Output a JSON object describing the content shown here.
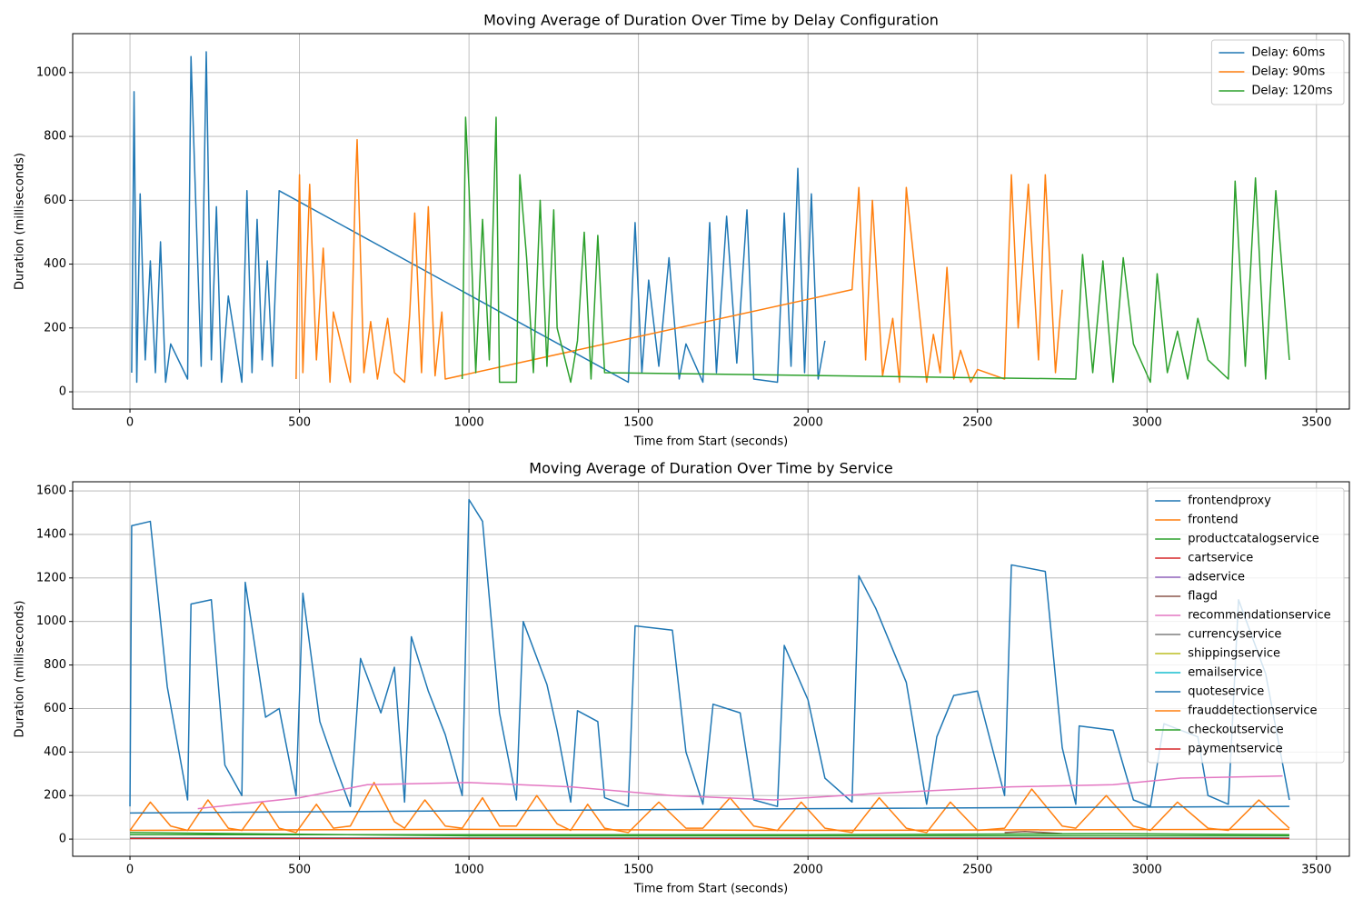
{
  "chart_data": [
    {
      "type": "line",
      "title": "Moving Average of Duration Over Time by Delay Configuration",
      "x_label": "Time from Start (seconds)",
      "y_label": "Duration (milliseconds)",
      "xlim": [
        -169,
        3597
      ],
      "ylim": [
        -54,
        1122
      ],
      "xticks": [
        0,
        500,
        1000,
        1500,
        2000,
        2500,
        3000,
        3500
      ],
      "yticks": [
        0,
        200,
        400,
        600,
        800,
        1000
      ],
      "grid": true,
      "legend": "upper right",
      "series": [
        {
          "name": "Delay: 60ms",
          "color": "#1f77b4",
          "x": [
            5,
            12,
            20,
            30,
            45,
            60,
            75,
            90,
            105,
            120,
            170,
            180,
            195,
            210,
            225,
            240,
            255,
            270,
            290,
            330,
            345,
            360,
            375,
            390,
            405,
            420,
            440,
            1470,
            1490,
            1510,
            1530,
            1560,
            1590,
            1620,
            1640,
            1690,
            1710,
            1730,
            1760,
            1790,
            1820,
            1840,
            1910,
            1930,
            1950,
            1970,
            1990,
            2010,
            2030,
            2050
          ],
          "values": [
            60,
            940,
            30,
            620,
            100,
            410,
            60,
            470,
            30,
            150,
            40,
            1050,
            560,
            80,
            1065,
            100,
            580,
            30,
            300,
            30,
            630,
            60,
            540,
            100,
            410,
            80,
            630,
            30,
            530,
            60,
            350,
            80,
            420,
            40,
            150,
            30,
            530,
            60,
            550,
            90,
            570,
            40,
            30,
            560,
            80,
            700,
            60,
            620,
            40,
            160
          ]
        },
        {
          "name": "Delay: 90ms",
          "color": "#ff7f0e",
          "x": [
            490,
            500,
            510,
            530,
            550,
            570,
            590,
            600,
            650,
            665,
            670,
            690,
            710,
            730,
            760,
            780,
            810,
            825,
            840,
            860,
            880,
            900,
            920,
            930,
            2130,
            2150,
            2170,
            2190,
            2220,
            2250,
            2270,
            2290,
            2350,
            2370,
            2390,
            2410,
            2430,
            2450,
            2480,
            2500,
            2580,
            2600,
            2620,
            2650,
            2680,
            2700,
            2730,
            2750
          ],
          "values": [
            40,
            680,
            60,
            650,
            100,
            450,
            30,
            250,
            30,
            650,
            790,
            60,
            220,
            40,
            230,
            60,
            30,
            240,
            560,
            60,
            580,
            50,
            250,
            40,
            320,
            640,
            100,
            600,
            50,
            230,
            30,
            640,
            30,
            180,
            60,
            390,
            40,
            130,
            30,
            70,
            40,
            680,
            200,
            650,
            100,
            680,
            60,
            320
          ]
        },
        {
          "name": "Delay: 120ms",
          "color": "#2ca02c",
          "x": [
            980,
            990,
            1000,
            1020,
            1040,
            1060,
            1080,
            1090,
            1140,
            1150,
            1170,
            1190,
            1210,
            1230,
            1250,
            1260,
            1300,
            1320,
            1340,
            1360,
            1380,
            1400,
            2790,
            2810,
            2840,
            2870,
            2900,
            2930,
            2960,
            3010,
            3030,
            3060,
            3090,
            3120,
            3150,
            3180,
            3240,
            3260,
            3290,
            3320,
            3350,
            3380,
            3420
          ],
          "values": [
            40,
            860,
            640,
            60,
            540,
            100,
            860,
            30,
            30,
            680,
            420,
            60,
            600,
            80,
            570,
            200,
            30,
            160,
            500,
            40,
            490,
            60,
            40,
            430,
            60,
            410,
            30,
            420,
            150,
            30,
            370,
            60,
            190,
            40,
            230,
            100,
            40,
            660,
            80,
            670,
            40,
            630,
            100
          ]
        }
      ]
    },
    {
      "type": "line",
      "title": "Moving Average of Duration Over Time by Service",
      "x_label": "Time from Start (seconds)",
      "y_label": "Duration (milliseconds)",
      "xlim": [
        -169,
        3597
      ],
      "ylim": [
        -79,
        1642
      ],
      "xticks": [
        0,
        500,
        1000,
        1500,
        2000,
        2500,
        3000,
        3500
      ],
      "yticks": [
        0,
        200,
        400,
        600,
        800,
        1000,
        1200,
        1400,
        1600
      ],
      "grid": true,
      "legend": "upper right",
      "series": [
        {
          "name": "frontendproxy",
          "color": "#1f77b4",
          "x": [
            0,
            5,
            60,
            110,
            170,
            180,
            240,
            280,
            330,
            340,
            400,
            440,
            490,
            510,
            560,
            600,
            650,
            680,
            740,
            780,
            810,
            830,
            880,
            930,
            980,
            1000,
            1040,
            1090,
            1140,
            1160,
            1230,
            1260,
            1300,
            1320,
            1380,
            1400,
            1470,
            1490,
            1600,
            1640,
            1690,
            1720,
            1800,
            1840,
            1910,
            1930,
            2000,
            2050,
            2130,
            2150,
            2200,
            2290,
            2350,
            2380,
            2430,
            2500,
            2580,
            2600,
            2700,
            2750,
            2790,
            2800,
            2900,
            2960,
            3010,
            3050,
            3150,
            3180,
            3240,
            3270,
            3350,
            3420
          ],
          "values": [
            150,
            1440,
            1460,
            700,
            180,
            1080,
            1100,
            340,
            200,
            1180,
            560,
            600,
            200,
            1130,
            540,
            360,
            150,
            830,
            580,
            790,
            170,
            930,
            680,
            480,
            200,
            1560,
            1460,
            580,
            180,
            1000,
            710,
            500,
            170,
            590,
            540,
            190,
            150,
            980,
            960,
            400,
            160,
            620,
            580,
            180,
            150,
            890,
            640,
            280,
            170,
            1210,
            1060,
            720,
            160,
            470,
            660,
            680,
            200,
            1260,
            1230,
            420,
            160,
            520,
            500,
            180,
            150,
            530,
            470,
            200,
            160,
            1100,
            760,
            180
          ]
        },
        {
          "name": "frontend",
          "color": "#ff7f0e",
          "x": [
            0,
            60,
            120,
            170,
            230,
            290,
            330,
            390,
            440,
            490,
            550,
            600,
            650,
            720,
            780,
            810,
            870,
            930,
            980,
            1040,
            1090,
            1140,
            1200,
            1260,
            1300,
            1350,
            1400,
            1470,
            1560,
            1640,
            1690,
            1770,
            1840,
            1910,
            1980,
            2050,
            2130,
            2210,
            2290,
            2350,
            2420,
            2500,
            2580,
            2660,
            2750,
            2790,
            2880,
            2960,
            3010,
            3090,
            3180,
            3240,
            3330,
            3420
          ],
          "values": [
            40,
            170,
            60,
            40,
            180,
            50,
            40,
            170,
            50,
            30,
            160,
            50,
            60,
            260,
            80,
            50,
            180,
            60,
            50,
            190,
            60,
            60,
            200,
            70,
            40,
            160,
            50,
            30,
            170,
            50,
            50,
            190,
            60,
            40,
            170,
            50,
            30,
            190,
            50,
            30,
            170,
            40,
            50,
            230,
            60,
            50,
            200,
            60,
            40,
            170,
            50,
            40,
            180,
            50
          ]
        },
        {
          "name": "productcatalogservice",
          "color": "#2ca02c",
          "x": [
            0,
            1000,
            2000,
            3420
          ],
          "values": [
            30,
            15,
            15,
            15
          ]
        },
        {
          "name": "cartservice",
          "color": "#d62728",
          "x": [
            0,
            1000,
            2000,
            3420
          ],
          "values": [
            6,
            5,
            5,
            5
          ]
        },
        {
          "name": "adservice",
          "color": "#9467bd",
          "x": [
            0,
            1000,
            2000,
            3420
          ],
          "values": [
            4,
            4,
            4,
            4
          ]
        },
        {
          "name": "flagd",
          "color": "#8c564b",
          "x": [
            2580,
            2640,
            2700,
            2750
          ],
          "values": [
            30,
            35,
            30,
            25
          ]
        },
        {
          "name": "recommendationservice",
          "color": "#e377c2",
          "x": [
            200,
            500,
            700,
            1000,
            1300,
            1600,
            1900,
            2200,
            2600,
            2900,
            3100,
            3400
          ],
          "values": [
            140,
            190,
            250,
            260,
            240,
            200,
            180,
            210,
            240,
            250,
            280,
            290
          ]
        },
        {
          "name": "currencyservice",
          "color": "#7f7f7f",
          "x": [
            0,
            1000,
            2000,
            3420
          ],
          "values": [
            3,
            3,
            3,
            3
          ]
        },
        {
          "name": "shippingservice",
          "color": "#bcbd22",
          "x": [
            0,
            1000,
            2000,
            3420
          ],
          "values": [
            5,
            5,
            5,
            5
          ]
        },
        {
          "name": "emailservice",
          "color": "#17becf",
          "x": [
            0,
            1000,
            2000,
            3420
          ],
          "values": [
            5,
            5,
            5,
            5
          ]
        },
        {
          "name": "quoteservice",
          "color": "#1f77b4",
          "x": [
            0,
            1000,
            2000,
            3420
          ],
          "values": [
            120,
            130,
            140,
            150
          ]
        },
        {
          "name": "frauddetectionservice",
          "color": "#ff7f0e",
          "x": [
            0,
            1000,
            2000,
            3420
          ],
          "values": [
            40,
            45,
            40,
            45
          ]
        },
        {
          "name": "checkoutservice",
          "color": "#2ca02c",
          "x": [
            0,
            1000,
            2000,
            2900,
            3420
          ],
          "values": [
            20,
            20,
            20,
            25,
            20
          ]
        },
        {
          "name": "paymentservice",
          "color": "#d62728",
          "x": [
            0,
            1000,
            2000,
            3420
          ],
          "values": [
            3,
            3,
            3,
            3
          ]
        }
      ]
    }
  ]
}
